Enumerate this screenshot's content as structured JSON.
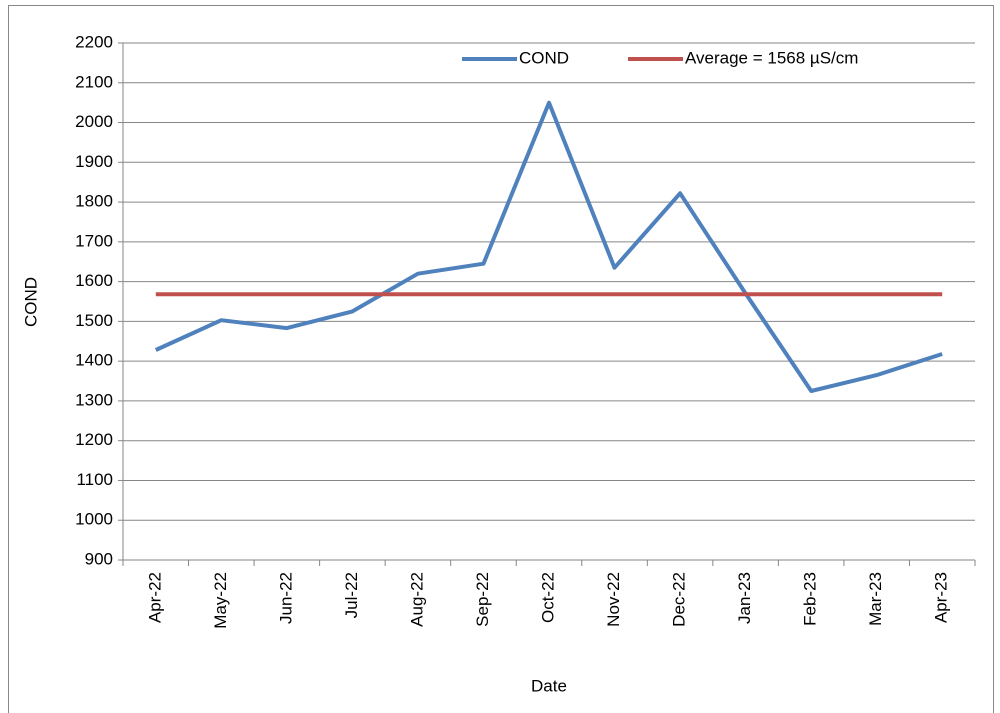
{
  "chart_data": {
    "type": "line",
    "x_label": "Date",
    "y_label": "COND",
    "categories": [
      "Apr-22",
      "May-22",
      "Jun-22",
      "Jul-22",
      "Aug-22",
      "Sep-22",
      "Oct-22",
      "Nov-22",
      "Dec-22",
      "Jan-23",
      "Feb-23",
      "Mar-23",
      "Apr-23"
    ],
    "series": [
      {
        "name": "COND",
        "color": "#4f81bd",
        "values": [
          1428,
          1503,
          1483,
          1525,
          1620,
          1645,
          2050,
          1635,
          1822,
          1570,
          1325,
          1365,
          1418
        ]
      },
      {
        "name": "Average = 1568  µS/cm",
        "color": "#c0504d",
        "values": [
          1568,
          1568,
          1568,
          1568,
          1568,
          1568,
          1568,
          1568,
          1568,
          1568,
          1568,
          1568,
          1568
        ]
      }
    ],
    "ylim": [
      900,
      2200
    ],
    "yticks": [
      900,
      1000,
      1100,
      1200,
      1300,
      1400,
      1500,
      1600,
      1700,
      1800,
      1900,
      2000,
      2100,
      2200
    ],
    "grid": true,
    "legend": "top-right"
  }
}
